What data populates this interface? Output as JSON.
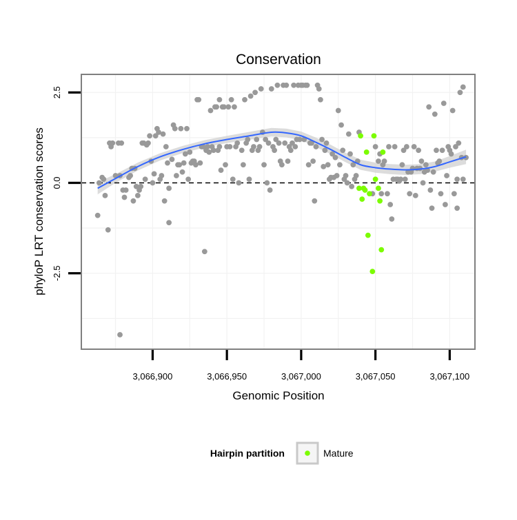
{
  "chart_data": {
    "type": "scatter",
    "title": "Conservation",
    "xlabel": "Genomic Position",
    "ylabel": "phyloP LRT conservation scores",
    "xlim": [
      3066852,
      3067117
    ],
    "ylim": [
      -4.6,
      3.0
    ],
    "x_ticks": [
      3066900,
      3066950,
      3067000,
      3067050,
      3067100
    ],
    "x_tick_labels": [
      "3,066,900",
      "3,066,950",
      "3,067,000",
      "3,067,050",
      "3,067,100"
    ],
    "y_ticks": [
      -2.5,
      0.0,
      2.5
    ],
    "y_tick_labels": [
      "-2.5",
      "0.0",
      "2.5"
    ],
    "reference_line_y": 0,
    "legend": {
      "title": "Hairpin partition",
      "entries": [
        {
          "label": "Mature",
          "color": "#7CFC00"
        }
      ],
      "position": "bottom"
    },
    "colors": {
      "other": "#999999",
      "mature": "#7CFC00",
      "smooth": "#3366FF",
      "band": "#d0d0d0",
      "panel_border": "#7f7f7f"
    },
    "series": [
      {
        "name": "other",
        "points": [
          [
            3066863,
            -0.9
          ],
          [
            3066864,
            0.0
          ],
          [
            3066866,
            0.15
          ],
          [
            3066867,
            0.1
          ],
          [
            3066868,
            -0.35
          ],
          [
            3066870,
            -1.3
          ],
          [
            3066871,
            1.1
          ],
          [
            3066872,
            1.0
          ],
          [
            3066873,
            1.1
          ],
          [
            3066875,
            0.2
          ],
          [
            3066877,
            1.1
          ],
          [
            3066878,
            -4.2
          ],
          [
            3066878,
            0.2
          ],
          [
            3066879,
            1.1
          ],
          [
            3066880,
            -0.2
          ],
          [
            3066881,
            -0.4
          ],
          [
            3066882,
            -0.2
          ],
          [
            3066884,
            0.15
          ],
          [
            3066885,
            0.2
          ],
          [
            3066886,
            0.4
          ],
          [
            3066887,
            -0.5
          ],
          [
            3066888,
            0.4
          ],
          [
            3066889,
            -0.1
          ],
          [
            3066890,
            -0.35
          ],
          [
            3066891,
            -0.2
          ],
          [
            3066892,
            -0.1
          ],
          [
            3066893,
            1.1
          ],
          [
            3066894,
            1.1
          ],
          [
            3066895,
            0.1
          ],
          [
            3066896,
            1.05
          ],
          [
            3066897,
            1.1
          ],
          [
            3066898,
            1.3
          ],
          [
            3066899,
            0.6
          ],
          [
            3066900,
            0.0
          ],
          [
            3066901,
            0.25
          ],
          [
            3066902,
            1.3
          ],
          [
            3066903,
            1.5
          ],
          [
            3066904,
            1.4
          ],
          [
            3066905,
            0.1
          ],
          [
            3066906,
            0.2
          ],
          [
            3066907,
            1.35
          ],
          [
            3066908,
            -0.5
          ],
          [
            3066909,
            1.0
          ],
          [
            3066910,
            0.55
          ],
          [
            3066911,
            -1.1
          ],
          [
            3066911,
            -0.15
          ],
          [
            3066913,
            0.65
          ],
          [
            3066914,
            1.6
          ],
          [
            3066915,
            1.5
          ],
          [
            3066916,
            0.2
          ],
          [
            3066917,
            0.5
          ],
          [
            3066918,
            0.5
          ],
          [
            3066919,
            1.5
          ],
          [
            3066920,
            0.3
          ],
          [
            3066921,
            0.55
          ],
          [
            3066922,
            0.8
          ],
          [
            3066923,
            1.5
          ],
          [
            3066924,
            0.1
          ],
          [
            3066925,
            0.85
          ],
          [
            3066926,
            0.55
          ],
          [
            3066927,
            0.6
          ],
          [
            3066928,
            0.6
          ],
          [
            3066929,
            0.5
          ],
          [
            3066930,
            2.3
          ],
          [
            3066931,
            2.3
          ],
          [
            3066932,
            0.55
          ],
          [
            3066933,
            1.0
          ],
          [
            3066934,
            1.0
          ],
          [
            3066935,
            -1.9
          ],
          [
            3066936,
            0.9
          ],
          [
            3066937,
            1.0
          ],
          [
            3066938,
            0.85
          ],
          [
            3066939,
            2.0
          ],
          [
            3066940,
            1.0
          ],
          [
            3066941,
            0.9
          ],
          [
            3066942,
            2.1
          ],
          [
            3066943,
            2.1
          ],
          [
            3066944,
            0.9
          ],
          [
            3066945,
            2.3
          ],
          [
            3066945,
            1.0
          ],
          [
            3066946,
            0.35
          ],
          [
            3066947,
            2.1
          ],
          [
            3066948,
            2.1
          ],
          [
            3066949,
            0.5
          ],
          [
            3066950,
            1.0
          ],
          [
            3066951,
            2.1
          ],
          [
            3066952,
            1.0
          ],
          [
            3066953,
            2.3
          ],
          [
            3066954,
            0.1
          ],
          [
            3066955,
            2.1
          ],
          [
            3066956,
            1.0
          ],
          [
            3066957,
            1.1
          ],
          [
            3066958,
            0.0
          ],
          [
            3066960,
            0.9
          ],
          [
            3066961,
            0.5
          ],
          [
            3066962,
            2.3
          ],
          [
            3066963,
            1.1
          ],
          [
            3066964,
            1.2
          ],
          [
            3066965,
            0.1
          ],
          [
            3066966,
            2.4
          ],
          [
            3066967,
            0.9
          ],
          [
            3066968,
            1.0
          ],
          [
            3066969,
            2.5
          ],
          [
            3066970,
            1.2
          ],
          [
            3066971,
            0.9
          ],
          [
            3066972,
            1.0
          ],
          [
            3066973,
            2.6
          ],
          [
            3066974,
            1.4
          ],
          [
            3066975,
            0.5
          ],
          [
            3066976,
            1.2
          ],
          [
            3066977,
            0.0
          ],
          [
            3066978,
            1.1
          ],
          [
            3066979,
            -0.2
          ],
          [
            3066980,
            2.6
          ],
          [
            3066981,
            1.0
          ],
          [
            3066982,
            0.9
          ],
          [
            3066983,
            1.2
          ],
          [
            3066984,
            2.7
          ],
          [
            3066985,
            1.1
          ],
          [
            3066986,
            0.6
          ],
          [
            3066987,
            0.5
          ],
          [
            3066988,
            2.7
          ],
          [
            3066989,
            1.1
          ],
          [
            3066990,
            2.7
          ],
          [
            3066991,
            0.6
          ],
          [
            3066992,
            1.0
          ],
          [
            3066993,
            0.9
          ],
          [
            3066994,
            1.1
          ],
          [
            3066995,
            2.7
          ],
          [
            3066996,
            1.0
          ],
          [
            3066997,
            1.2
          ],
          [
            3066998,
            2.7
          ],
          [
            3066999,
            1.2
          ],
          [
            3067000,
            2.7
          ],
          [
            3067001,
            2.7
          ],
          [
            3067002,
            1.2
          ],
          [
            3067003,
            2.7
          ],
          [
            3067004,
            2.7
          ],
          [
            3067005,
            0.5
          ],
          [
            3067006,
            1.1
          ],
          [
            3067007,
            1.1
          ],
          [
            3067008,
            0.6
          ],
          [
            3067009,
            -0.5
          ],
          [
            3067010,
            1.0
          ],
          [
            3067011,
            2.7
          ],
          [
            3067012,
            2.6
          ],
          [
            3067013,
            2.3
          ],
          [
            3067014,
            1.2
          ],
          [
            3067015,
            0.45
          ],
          [
            3067016,
            0.9
          ],
          [
            3067017,
            1.1
          ],
          [
            3067018,
            0.5
          ],
          [
            3067019,
            0.1
          ],
          [
            3067020,
            0.15
          ],
          [
            3067021,
            0.8
          ],
          [
            3067022,
            0.15
          ],
          [
            3067023,
            0.7
          ],
          [
            3067024,
            0.2
          ],
          [
            3067025,
            2.0
          ],
          [
            3067026,
            0.5
          ],
          [
            3067027,
            1.6
          ],
          [
            3067028,
            0.9
          ],
          [
            3067029,
            0.1
          ],
          [
            3067030,
            0.2
          ],
          [
            3067031,
            0.0
          ],
          [
            3067032,
            1.35
          ],
          [
            3067033,
            0.8
          ],
          [
            3067034,
            -0.1
          ],
          [
            3067035,
            0.5
          ],
          [
            3067036,
            0.1
          ],
          [
            3067037,
            0.2
          ],
          [
            3067038,
            0.6
          ],
          [
            3067039,
            1.4
          ],
          [
            3067048,
            -0.3
          ],
          [
            3067050,
            1.0
          ],
          [
            3067052,
            0.6
          ],
          [
            3067053,
            0.8
          ],
          [
            3067054,
            -0.3
          ],
          [
            3067055,
            0.5
          ],
          [
            3067056,
            0.6
          ],
          [
            3067058,
            -0.3
          ],
          [
            3067059,
            1.0
          ],
          [
            3067060,
            -0.6
          ],
          [
            3067061,
            -1.0
          ],
          [
            3067062,
            0.1
          ],
          [
            3067063,
            1.0
          ],
          [
            3067064,
            0.1
          ],
          [
            3067065,
            0.1
          ],
          [
            3067066,
            0.05
          ],
          [
            3067067,
            0.1
          ],
          [
            3067068,
            0.5
          ],
          [
            3067069,
            0.9
          ],
          [
            3067070,
            0.1
          ],
          [
            3067071,
            1.0
          ],
          [
            3067072,
            0.3
          ],
          [
            3067073,
            -0.3
          ],
          [
            3067074,
            0.3
          ],
          [
            3067075,
            0.4
          ],
          [
            3067076,
            1.0
          ],
          [
            3067077,
            -0.35
          ],
          [
            3067078,
            0.4
          ],
          [
            3067079,
            0.9
          ],
          [
            3067080,
            0.4
          ],
          [
            3067081,
            0.6
          ],
          [
            3067082,
            0.0
          ],
          [
            3067083,
            0.3
          ],
          [
            3067084,
            0.5
          ],
          [
            3067085,
            0.35
          ],
          [
            3067086,
            2.1
          ],
          [
            3067087,
            -0.2
          ],
          [
            3067088,
            -0.7
          ],
          [
            3067089,
            0.3
          ],
          [
            3067090,
            1.9
          ],
          [
            3067091,
            0.9
          ],
          [
            3067092,
            0.55
          ],
          [
            3067093,
            0.6
          ],
          [
            3067094,
            -0.3
          ],
          [
            3067095,
            0.9
          ],
          [
            3067096,
            2.2
          ],
          [
            3067097,
            -0.6
          ],
          [
            3067098,
            0.2
          ],
          [
            3067099,
            1.0
          ],
          [
            3067100,
            0.9
          ],
          [
            3067101,
            0.8
          ],
          [
            3067102,
            2.0
          ],
          [
            3067103,
            -0.3
          ],
          [
            3067104,
            1.0
          ],
          [
            3067105,
            0.1
          ],
          [
            3067105,
            -0.7
          ],
          [
            3067106,
            1.1
          ],
          [
            3067107,
            2.5
          ],
          [
            3067108,
            0.7
          ],
          [
            3067109,
            0.1
          ],
          [
            3067109,
            2.65
          ],
          [
            3067111,
            0.7
          ]
        ]
      },
      {
        "name": "Mature",
        "points": [
          [
            3067039,
            -0.15
          ],
          [
            3067040,
            1.3
          ],
          [
            3067041,
            -0.45
          ],
          [
            3067042,
            -0.15
          ],
          [
            3067043,
            -0.2
          ],
          [
            3067044,
            0.85
          ],
          [
            3067045,
            -1.45
          ],
          [
            3067046,
            -0.3
          ],
          [
            3067048,
            -2.45
          ],
          [
            3067049,
            1.3
          ],
          [
            3067050,
            0.1
          ],
          [
            3067052,
            -0.15
          ],
          [
            3067053,
            -0.5
          ],
          [
            3067054,
            -1.85
          ],
          [
            3067055,
            0.85
          ]
        ]
      }
    ],
    "smooth": {
      "x": [
        3066863,
        3066875,
        3066890,
        3066905,
        3066920,
        3066935,
        3066950,
        3066965,
        3066980,
        3066990,
        3067000,
        3067010,
        3067020,
        3067030,
        3067040,
        3067050,
        3067060,
        3067070,
        3067080,
        3067090,
        3067100,
        3067111
      ],
      "y": [
        -0.15,
        0.12,
        0.45,
        0.72,
        0.92,
        1.08,
        1.2,
        1.3,
        1.4,
        1.38,
        1.3,
        1.12,
        0.92,
        0.7,
        0.5,
        0.42,
        0.38,
        0.36,
        0.38,
        0.45,
        0.58,
        0.72
      ],
      "band": [
        0.17,
        0.12,
        0.11,
        0.1,
        0.1,
        0.1,
        0.1,
        0.11,
        0.12,
        0.12,
        0.12,
        0.13,
        0.13,
        0.13,
        0.14,
        0.14,
        0.14,
        0.14,
        0.14,
        0.14,
        0.16,
        0.2
      ]
    }
  }
}
